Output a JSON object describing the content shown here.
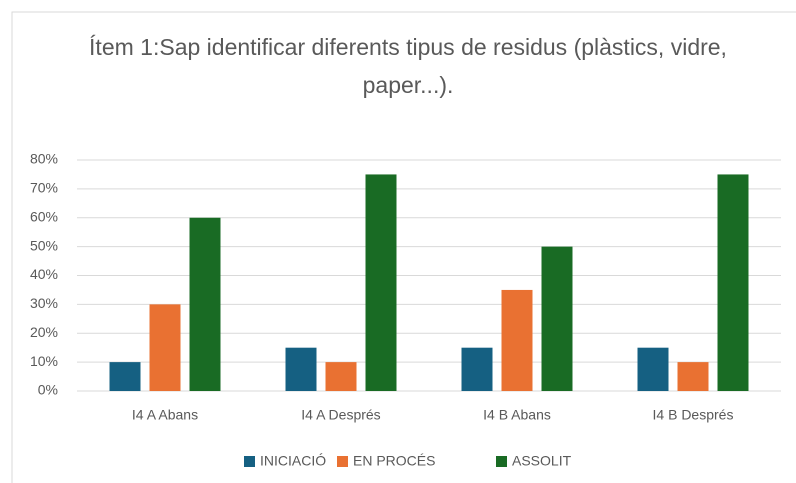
{
  "chart_data": {
    "type": "bar",
    "title": "Ítem 1:Sap identificar diferents tipus de residus (plàstics, vidre, paper...).",
    "categories": [
      "I4 A Abans",
      "I4 A Després",
      "I4 B Abans",
      "I4 B Després"
    ],
    "series": [
      {
        "name": "INICIACIÓ",
        "color": "#156082",
        "values": [
          10,
          15,
          15,
          15
        ]
      },
      {
        "name": "EN PROCÉS",
        "color": "#e97132",
        "values": [
          30,
          10,
          35,
          10
        ]
      },
      {
        "name": "ASSOLIT",
        "color": "#196b24",
        "values": [
          60,
          75,
          50,
          75
        ]
      }
    ],
    "ylim": [
      0,
      80
    ],
    "yticks": [
      {
        "value": 0,
        "label": "0%"
      },
      {
        "value": 10,
        "label": "10%"
      },
      {
        "value": 20,
        "label": "20%"
      },
      {
        "value": 30,
        "label": "30%"
      },
      {
        "value": 40,
        "label": "40%"
      },
      {
        "value": 50,
        "label": "50%"
      },
      {
        "value": 60,
        "label": "60%"
      },
      {
        "value": 70,
        "label": "70%"
      },
      {
        "value": 80,
        "label": "80%"
      }
    ],
    "grid": true,
    "legend": "bottom"
  }
}
